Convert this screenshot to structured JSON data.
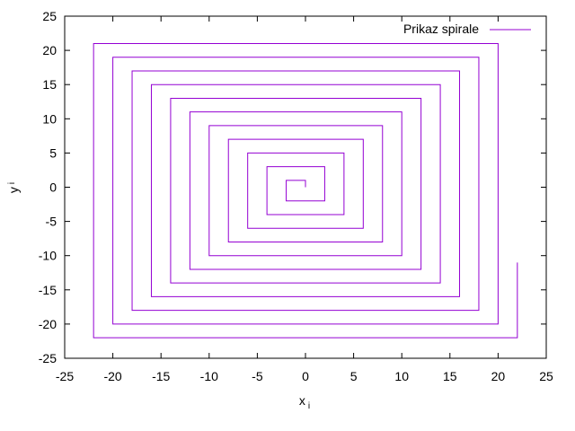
{
  "chart_data": {
    "type": "line",
    "title": "",
    "xlabel": "x",
    "xlabel_sub": "i",
    "ylabel": "y",
    "ylabel_sub": "i",
    "xlim": [
      -25,
      25
    ],
    "ylim": [
      -25,
      25
    ],
    "xticks": [
      -25,
      -20,
      -15,
      -10,
      -5,
      0,
      5,
      10,
      15,
      20,
      25
    ],
    "yticks": [
      -25,
      -20,
      -15,
      -10,
      -5,
      0,
      5,
      10,
      15,
      20,
      25
    ],
    "grid": false,
    "legend_position": "top-right",
    "series": [
      {
        "name": "Prikaz spirale",
        "color": "#9400d3",
        "points": [
          [
            0,
            0
          ],
          [
            0,
            1
          ],
          [
            -2,
            1
          ],
          [
            -2,
            -2
          ],
          [
            2,
            -2
          ],
          [
            2,
            3
          ],
          [
            -4,
            3
          ],
          [
            -4,
            -4
          ],
          [
            4,
            -4
          ],
          [
            4,
            5
          ],
          [
            -6,
            5
          ],
          [
            -6,
            -6
          ],
          [
            6,
            -6
          ],
          [
            6,
            7
          ],
          [
            -8,
            7
          ],
          [
            -8,
            -8
          ],
          [
            8,
            -8
          ],
          [
            8,
            9
          ],
          [
            -10,
            9
          ],
          [
            -10,
            -10
          ],
          [
            10,
            -10
          ],
          [
            10,
            11
          ],
          [
            -12,
            11
          ],
          [
            -12,
            -12
          ],
          [
            12,
            -12
          ],
          [
            12,
            13
          ],
          [
            -14,
            13
          ],
          [
            -14,
            -14
          ],
          [
            14,
            -14
          ],
          [
            14,
            15
          ],
          [
            -16,
            15
          ],
          [
            -16,
            -16
          ],
          [
            16,
            -16
          ],
          [
            16,
            17
          ],
          [
            -18,
            17
          ],
          [
            -18,
            -18
          ],
          [
            18,
            -18
          ],
          [
            18,
            19
          ],
          [
            -20,
            19
          ],
          [
            -20,
            -20
          ],
          [
            20,
            -20
          ],
          [
            20,
            21
          ],
          [
            -22,
            21
          ],
          [
            -22,
            -22
          ],
          [
            22,
            -22
          ],
          [
            22,
            -11
          ]
        ]
      }
    ]
  }
}
